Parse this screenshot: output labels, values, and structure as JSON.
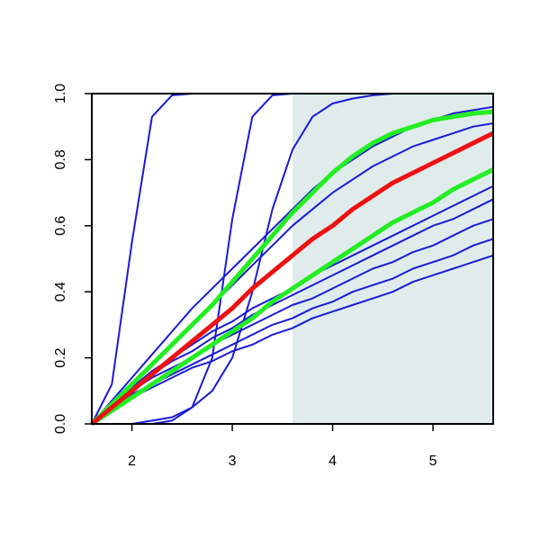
{
  "chart_data": {
    "type": "line",
    "x": [
      1.6,
      1.8,
      2.0,
      2.2,
      2.4,
      2.6,
      2.8,
      3.0,
      3.2,
      3.4,
      3.6,
      3.8,
      4.0,
      4.2,
      4.4,
      4.6,
      4.8,
      5.0,
      5.2,
      5.4,
      5.6
    ],
    "series": [
      {
        "color": "#1a1ad6",
        "linewidth": 2,
        "values": [
          0,
          0.12,
          0.55,
          0.93,
          0.995,
          1,
          1,
          1,
          1,
          1,
          1,
          1,
          1,
          1,
          1,
          1,
          1,
          1,
          1,
          1,
          1
        ]
      },
      {
        "color": "#1a1ad6",
        "linewidth": 2,
        "values": [
          0,
          0,
          0,
          0,
          0.01,
          0.05,
          0.2,
          0.62,
          0.93,
          0.995,
          1,
          1,
          1,
          1,
          1,
          1,
          1,
          1,
          1,
          1,
          1
        ]
      },
      {
        "color": "#1a1ad6",
        "linewidth": 2,
        "values": [
          0,
          0,
          0,
          0.01,
          0.02,
          0.05,
          0.1,
          0.2,
          0.4,
          0.65,
          0.83,
          0.93,
          0.97,
          0.985,
          0.995,
          1,
          1,
          1,
          1,
          1,
          1
        ]
      },
      {
        "color": "#1a1ad6",
        "linewidth": 2,
        "values": [
          0,
          0.07,
          0.14,
          0.21,
          0.28,
          0.35,
          0.41,
          0.47,
          0.53,
          0.59,
          0.65,
          0.71,
          0.76,
          0.8,
          0.84,
          0.87,
          0.9,
          0.92,
          0.94,
          0.95,
          0.96
        ]
      },
      {
        "color": "#1a1ad6",
        "linewidth": 2,
        "values": [
          0,
          0.06,
          0.12,
          0.18,
          0.24,
          0.3,
          0.36,
          0.42,
          0.48,
          0.54,
          0.6,
          0.65,
          0.7,
          0.74,
          0.78,
          0.81,
          0.84,
          0.86,
          0.88,
          0.9,
          0.91
        ]
      },
      {
        "color": "#1a1ad6",
        "linewidth": 2,
        "values": [
          0,
          0.07,
          0.11,
          0.16,
          0.2,
          0.24,
          0.28,
          0.31,
          0.35,
          0.38,
          0.41,
          0.45,
          0.48,
          0.51,
          0.54,
          0.57,
          0.6,
          0.63,
          0.66,
          0.69,
          0.72
        ]
      },
      {
        "color": "#1a1ad6",
        "linewidth": 2,
        "values": [
          0,
          0.06,
          0.11,
          0.15,
          0.19,
          0.22,
          0.26,
          0.29,
          0.33,
          0.36,
          0.39,
          0.42,
          0.45,
          0.48,
          0.51,
          0.54,
          0.57,
          0.6,
          0.62,
          0.65,
          0.68
        ]
      },
      {
        "color": "#1a1ad6",
        "linewidth": 2,
        "values": [
          0,
          0.06,
          0.1,
          0.14,
          0.17,
          0.2,
          0.24,
          0.27,
          0.3,
          0.33,
          0.36,
          0.38,
          0.41,
          0.44,
          0.47,
          0.49,
          0.52,
          0.54,
          0.57,
          0.6,
          0.62
        ]
      },
      {
        "color": "#1a1ad6",
        "linewidth": 2,
        "values": [
          0,
          0.05,
          0.09,
          0.12,
          0.15,
          0.18,
          0.21,
          0.24,
          0.27,
          0.3,
          0.32,
          0.35,
          0.37,
          0.4,
          0.42,
          0.44,
          0.47,
          0.49,
          0.51,
          0.54,
          0.56
        ]
      },
      {
        "color": "#1a1ad6",
        "linewidth": 2,
        "values": [
          0,
          0.05,
          0.08,
          0.11,
          0.14,
          0.17,
          0.19,
          0.22,
          0.24,
          0.27,
          0.29,
          0.32,
          0.34,
          0.36,
          0.38,
          0.4,
          0.43,
          0.45,
          0.47,
          0.49,
          0.51
        ]
      },
      {
        "color": "#22ee22",
        "linewidth": 5,
        "values": [
          0,
          0.06,
          0.12,
          0.18,
          0.24,
          0.3,
          0.36,
          0.43,
          0.5,
          0.57,
          0.64,
          0.7,
          0.76,
          0.81,
          0.85,
          0.88,
          0.9,
          0.92,
          0.93,
          0.94,
          0.945
        ]
      },
      {
        "color": "#22ee22",
        "linewidth": 5,
        "values": [
          0,
          0.04,
          0.08,
          0.12,
          0.16,
          0.2,
          0.24,
          0.28,
          0.32,
          0.37,
          0.41,
          0.45,
          0.49,
          0.53,
          0.57,
          0.61,
          0.64,
          0.67,
          0.71,
          0.74,
          0.77
        ]
      },
      {
        "color": "#ee1111",
        "linewidth": 5,
        "values": [
          0,
          0.05,
          0.1,
          0.15,
          0.2,
          0.25,
          0.3,
          0.35,
          0.41,
          0.46,
          0.51,
          0.56,
          0.6,
          0.65,
          0.69,
          0.73,
          0.76,
          0.79,
          0.82,
          0.85,
          0.88
        ]
      }
    ],
    "shaded_x": [
      3.6,
      5.6
    ],
    "shade_color": "#e0ecec",
    "xlim": [
      1.6,
      5.6
    ],
    "ylim": [
      0,
      1
    ],
    "xticks": [
      2,
      3,
      4,
      5
    ],
    "yticks": [
      {
        "value": 0,
        "label": "0.0"
      },
      {
        "value": 0.2,
        "label": "0.2"
      },
      {
        "value": 0.4,
        "label": "0.4"
      },
      {
        "value": 0.6,
        "label": "0.6"
      },
      {
        "value": 0.8,
        "label": "0.8"
      },
      {
        "value": 1,
        "label": "1.0"
      }
    ]
  }
}
